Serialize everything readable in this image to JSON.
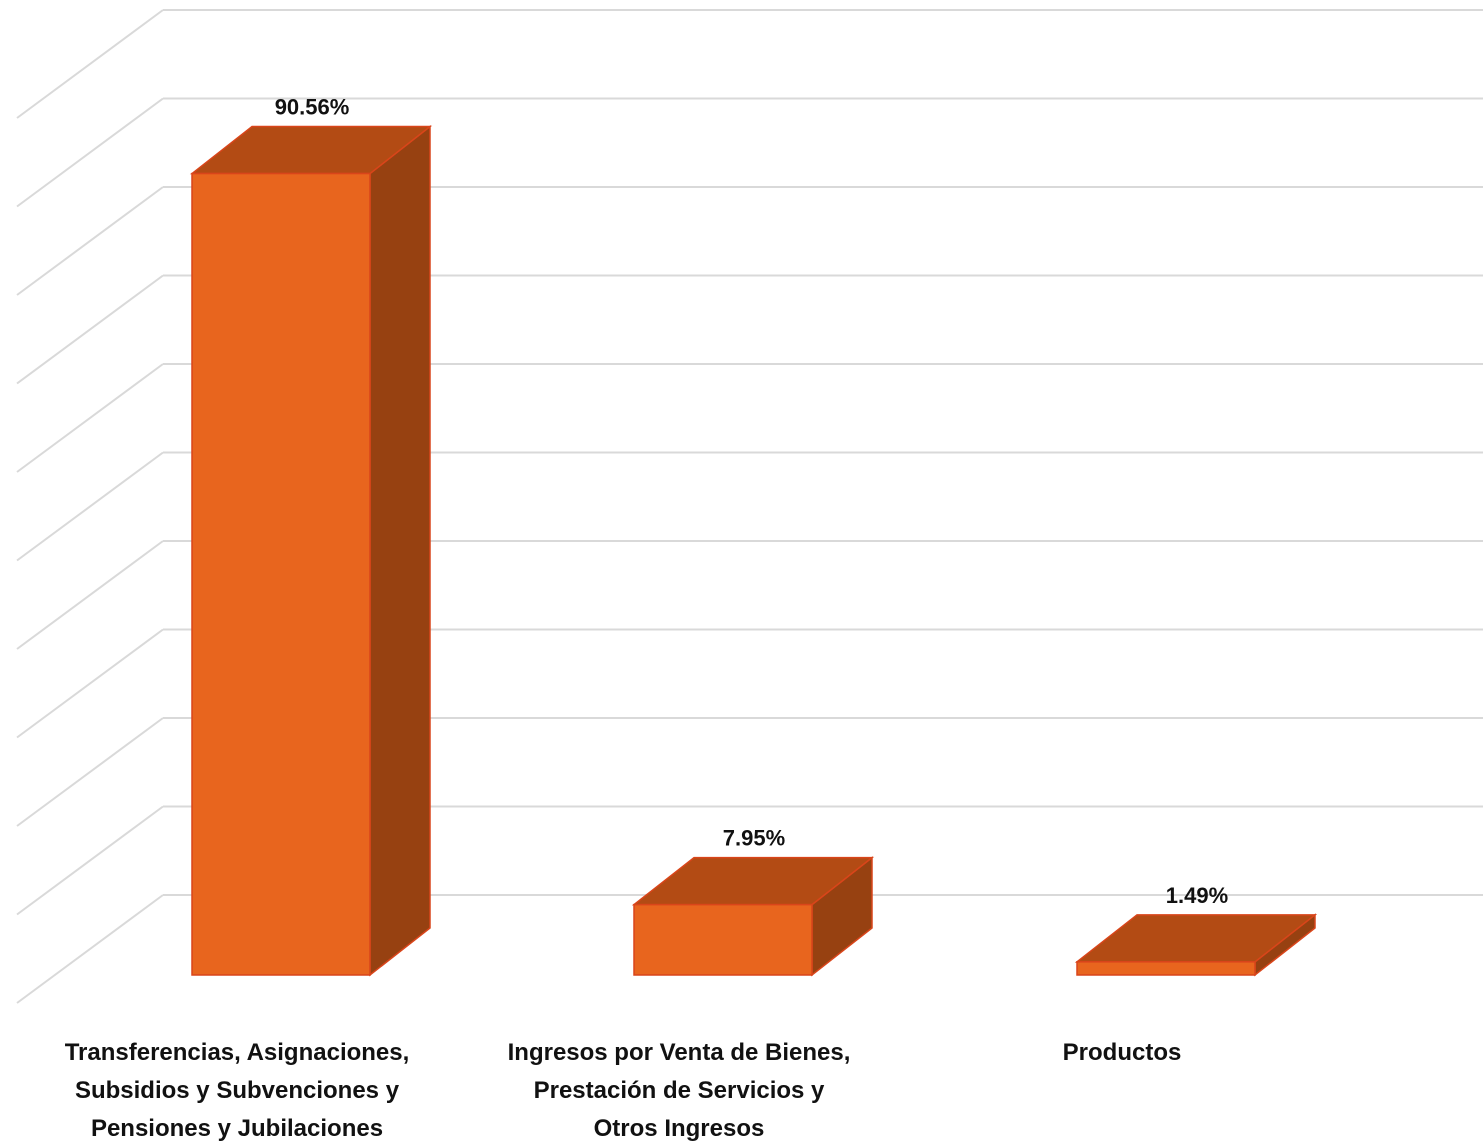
{
  "chart_data": {
    "type": "bar",
    "style": "3d-column",
    "categories": [
      [
        "Transferencias, Asignaciones,",
        "Subsidios y Subvenciones y",
        "Pensiones y Jubilaciones"
      ],
      [
        "Ingresos por Venta de Bienes,",
        "Prestación de Servicios y",
        "Otros Ingresos"
      ],
      [
        "Productos"
      ]
    ],
    "values": [
      90.56,
      7.95,
      1.49
    ],
    "value_labels": [
      "90.56%",
      "7.95%",
      "1.49%"
    ],
    "ylim": [
      0,
      100
    ],
    "grid": true,
    "colors": {
      "front": "#E8651E",
      "top": "#B34B14",
      "side": "#974111",
      "edge": "#D9451A",
      "grid": "#D9D9D9"
    }
  }
}
